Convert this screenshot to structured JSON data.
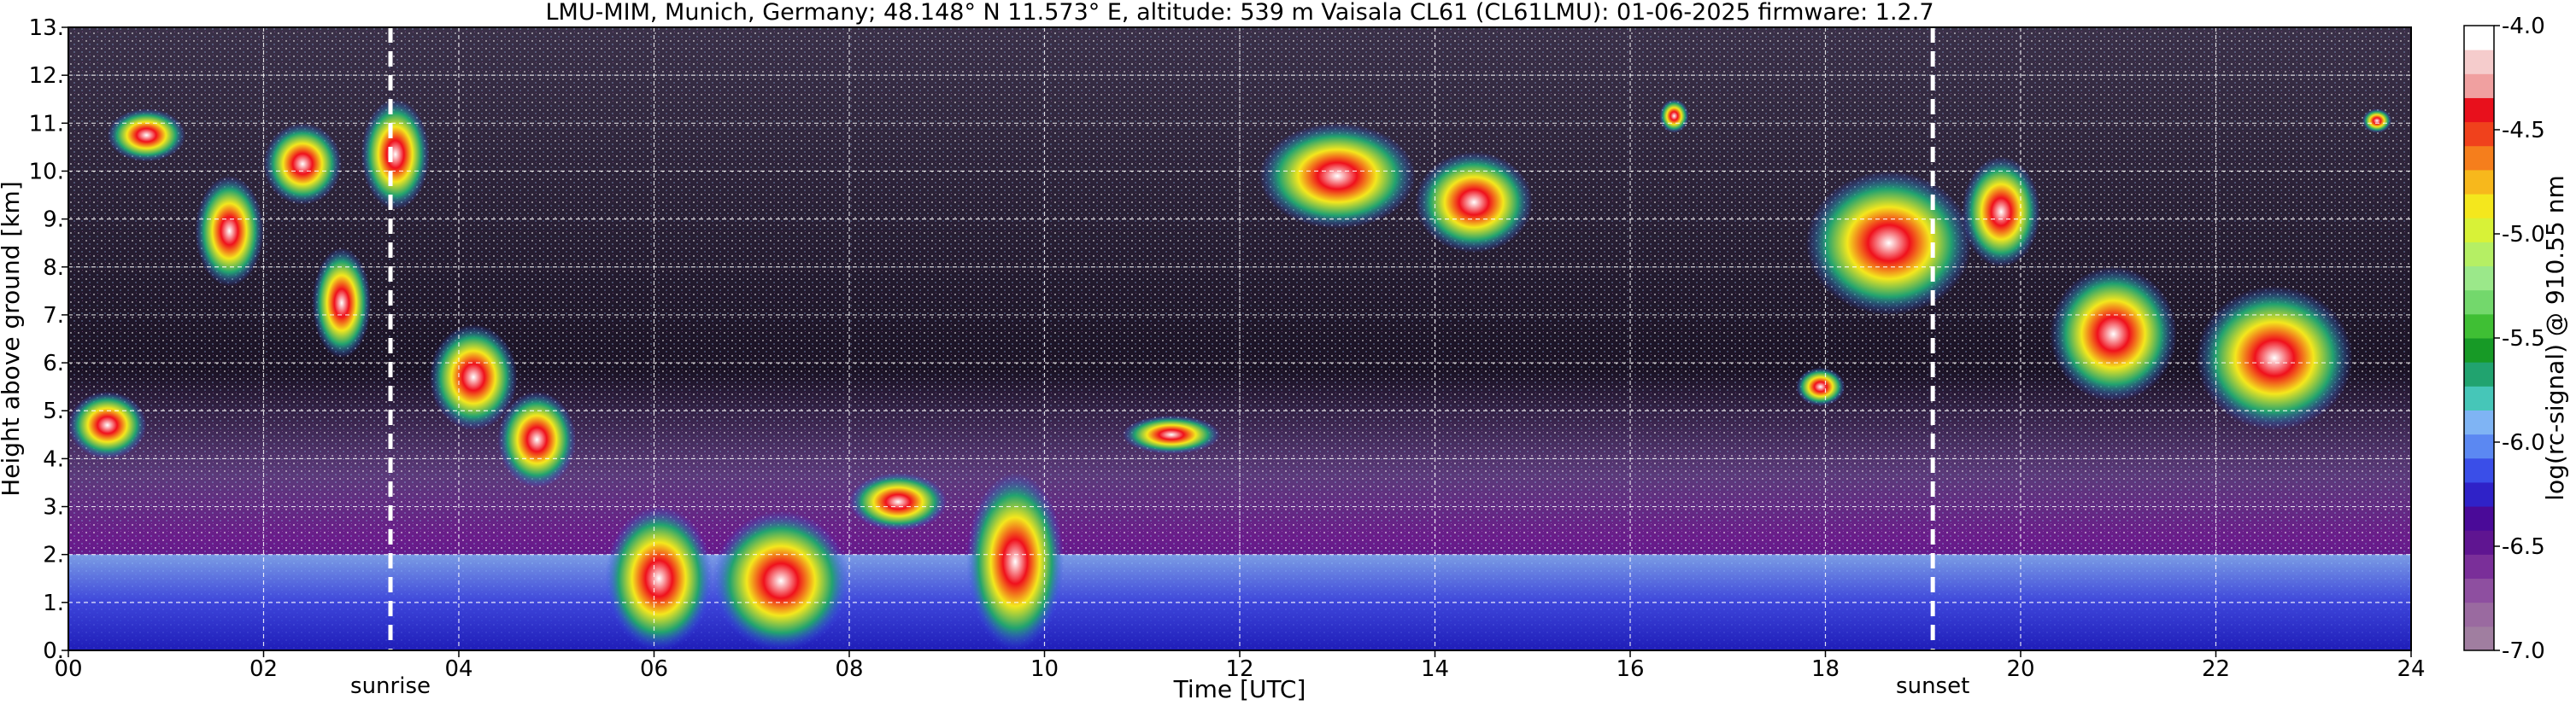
{
  "chart_data": {
    "type": "heatmap",
    "title": "LMU-MIM, Munich, Germany; 48.148° N 11.573° E, altitude: 539 m    Vaisala CL61 (CL61LMU): 01-06-2025    firmware: 1.2.7",
    "xlabel": "Time [UTC]",
    "ylabel": "Height above ground [km]",
    "colorbar_label": "log(rc-signal) @ 910.55 nm",
    "xlim": [
      0,
      24
    ],
    "ylim": [
      0,
      13
    ],
    "x_ticks": [
      "00",
      "02",
      "04",
      "06",
      "08",
      "10",
      "12",
      "14",
      "16",
      "18",
      "20",
      "22",
      "24"
    ],
    "y_ticks": [
      "0.",
      "1.",
      "2.",
      "3.",
      "4.",
      "5.",
      "6.",
      "7.",
      "8.",
      "9.",
      "10.",
      "11.",
      "12.",
      "13."
    ],
    "colorbar_range": [
      -7.0,
      -4.0
    ],
    "colorbar_ticks": [
      "-4.0",
      "-4.5",
      "-5.0",
      "-5.5",
      "-6.0",
      "-6.5",
      "-7.0"
    ],
    "colorbar_colors": [
      "#a07ea0",
      "#9a6aa0",
      "#8e4fa0",
      "#7a2f99",
      "#5f1591",
      "#4a0a98",
      "#2f22c8",
      "#3a4ee8",
      "#5b88f2",
      "#7fb4f4",
      "#46c6b8",
      "#21a36f",
      "#179a26",
      "#3fbf34",
      "#73d86c",
      "#9be88a",
      "#b5ef64",
      "#d8f237",
      "#f4e71d",
      "#f7b81c",
      "#f57e1c",
      "#f0411c",
      "#e8101c",
      "#f0a0a0",
      "#f5cccc",
      "#ffffff"
    ],
    "grid": true,
    "annotations": [
      {
        "label": "sunrise",
        "x": 3.3
      },
      {
        "label": "sunset",
        "x": 19.1
      }
    ],
    "cloud_features": [
      {
        "x0": 0.0,
        "x1": 0.8,
        "y0": 4.0,
        "y1": 5.4
      },
      {
        "x0": 0.4,
        "x1": 1.2,
        "y0": 10.2,
        "y1": 11.3
      },
      {
        "x0": 1.3,
        "x1": 2.0,
        "y0": 7.6,
        "y1": 9.9
      },
      {
        "x0": 2.0,
        "x1": 2.8,
        "y0": 9.3,
        "y1": 11.0
      },
      {
        "x0": 2.5,
        "x1": 3.1,
        "y0": 6.1,
        "y1": 8.4
      },
      {
        "x0": 3.0,
        "x1": 3.7,
        "y0": 9.2,
        "y1": 11.5
      },
      {
        "x0": 3.7,
        "x1": 4.6,
        "y0": 4.6,
        "y1": 6.8
      },
      {
        "x0": 4.4,
        "x1": 5.2,
        "y0": 3.4,
        "y1": 5.4
      },
      {
        "x0": 5.5,
        "x1": 6.6,
        "y0": 0.0,
        "y1": 3.0
      },
      {
        "x0": 6.6,
        "x1": 8.0,
        "y0": 0.0,
        "y1": 2.9
      },
      {
        "x0": 8.0,
        "x1": 9.0,
        "y0": 2.5,
        "y1": 3.7
      },
      {
        "x0": 9.2,
        "x1": 10.2,
        "y0": 0.0,
        "y1": 3.7
      },
      {
        "x0": 10.8,
        "x1": 11.8,
        "y0": 4.1,
        "y1": 4.9
      },
      {
        "x0": 12.2,
        "x1": 13.8,
        "y0": 8.8,
        "y1": 11.0
      },
      {
        "x0": 13.8,
        "x1": 15.0,
        "y0": 8.3,
        "y1": 10.4
      },
      {
        "x0": 16.3,
        "x1": 16.6,
        "y0": 10.8,
        "y1": 11.5
      },
      {
        "x0": 17.7,
        "x1": 18.2,
        "y0": 5.1,
        "y1": 5.9
      },
      {
        "x0": 17.8,
        "x1": 19.5,
        "y0": 7.0,
        "y1": 10.0
      },
      {
        "x0": 19.4,
        "x1": 20.2,
        "y0": 8.0,
        "y1": 10.3
      },
      {
        "x0": 20.3,
        "x1": 21.6,
        "y0": 5.2,
        "y1": 8.0
      },
      {
        "x0": 21.8,
        "x1": 23.4,
        "y0": 4.6,
        "y1": 7.6
      },
      {
        "x0": 23.5,
        "x1": 23.8,
        "y0": 10.8,
        "y1": 11.3
      }
    ]
  }
}
